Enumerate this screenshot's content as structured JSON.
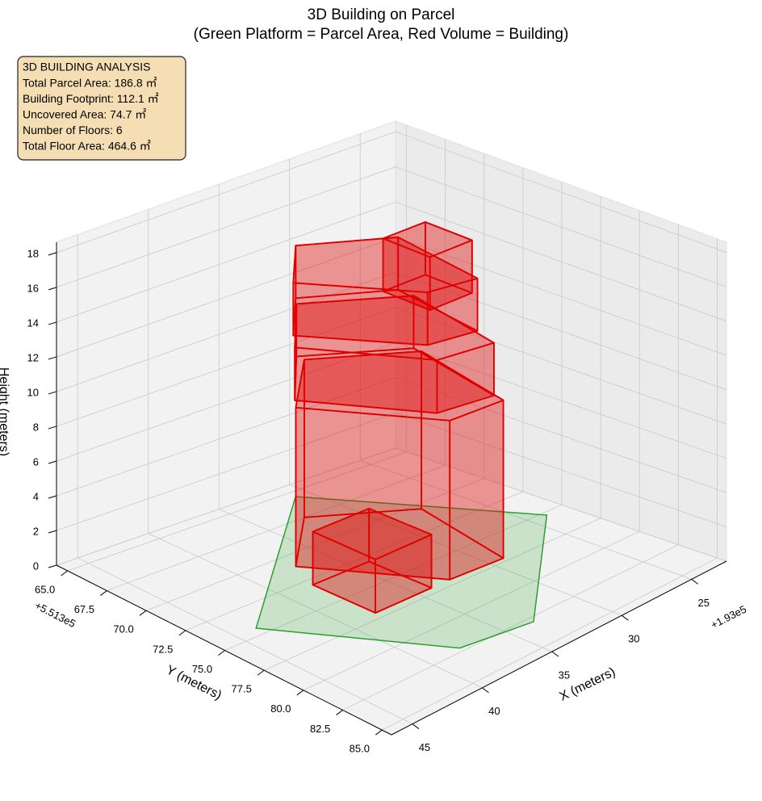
{
  "chart_data": {
    "type": "3d-building",
    "title": "3D Building on Parcel",
    "subtitle": "(Green Platform = Parcel Area, Red Volume = Building)",
    "info_box": [
      "3D BUILDING ANALYSIS",
      "Total Parcel Area: 186.8 ㎡",
      "Building Footprint: 112.1 ㎡",
      "Uncovered Area: 74.7 ㎡",
      "Number of Floors: 6",
      "Total Floor Area: 464.6 ㎡"
    ],
    "xlabel": "X (meters)",
    "ylabel": "Y (meters)",
    "zlabel": "Height (meters)",
    "x_offset": "+1.93e5",
    "y_offset": "+5.513e5",
    "xlim": [
      22.5,
      46.5
    ],
    "xticks": [
      25,
      30,
      35,
      40,
      45
    ],
    "ylim": [
      64.3,
      85.6
    ],
    "yticks": [
      {
        "value": 65,
        "label": "65.0"
      },
      {
        "value": 67.5,
        "label": "67.5"
      },
      {
        "value": 70,
        "label": "70.0"
      },
      {
        "value": 72.5,
        "label": "72.5"
      },
      {
        "value": 75,
        "label": "75.0"
      },
      {
        "value": 77.5,
        "label": "77.5"
      },
      {
        "value": 80,
        "label": "80.0"
      },
      {
        "value": 82.5,
        "label": "82.5"
      },
      {
        "value": 85,
        "label": "85.0"
      }
    ],
    "zlim": [
      0,
      18.6
    ],
    "zticks": [
      0,
      2,
      4,
      6,
      8,
      10,
      12,
      14,
      16,
      18
    ],
    "grid": true,
    "parcel": {
      "color": "#2ca02c",
      "x": [
        43.6,
        37.8,
        33.3,
        23.9,
        30.9
      ],
      "y": [
        74.4,
        82.2,
        82.9,
        75.3,
        65.5
      ]
    },
    "building_color": "#e00000",
    "volumes": [
      {
        "x": [
          37.1,
          32.7,
          29.1,
          27.5,
          32.5
        ],
        "y": [
          71.1,
          77.0,
          77.2,
          70.5,
          67.5
        ],
        "z": [
          0,
          9
        ]
      },
      {
        "x": [
          36.5,
          32.5,
          29.0,
          27.5,
          32.5
        ],
        "y": [
          70.5,
          76.0,
          76.5,
          70.0,
          67.0
        ],
        "z": [
          9,
          12
        ]
      },
      {
        "x": [
          35.5,
          31.5,
          28.5,
          27.5,
          32.0
        ],
        "y": [
          69.5,
          74.5,
          75.0,
          69.0,
          66.5
        ],
        "z": [
          12,
          15
        ]
      },
      {
        "x": [
          33,
          33,
          30,
          30
        ],
        "y": [
          73,
          76,
          76,
          73
        ],
        "z": [
          15,
          18
        ]
      },
      {
        "x": [
          38,
          38,
          34,
          34
        ],
        "y": [
          73,
          77,
          77,
          73
        ],
        "z": [
          0,
          3
        ]
      }
    ]
  }
}
